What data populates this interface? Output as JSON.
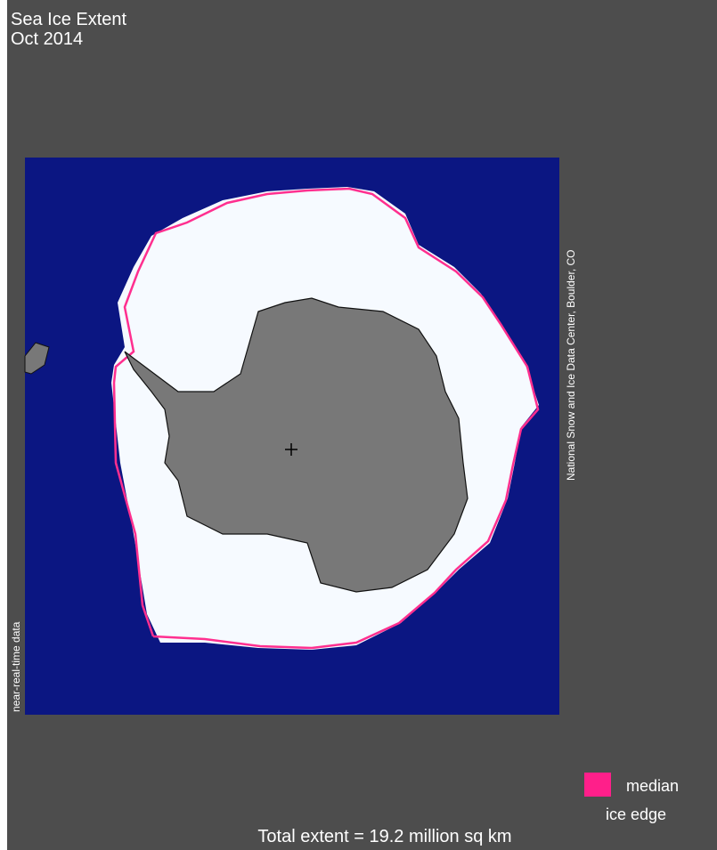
{
  "header": {
    "title": "Sea Ice Extent",
    "date": "Oct 2014"
  },
  "credit": "National Snow and Ice Data Center, Boulder, CO",
  "data_note": "near-real-time data",
  "legend": {
    "line1": "median",
    "line2": "ice edge"
  },
  "footer": "Total extent = 19.2 million sq km"
}
